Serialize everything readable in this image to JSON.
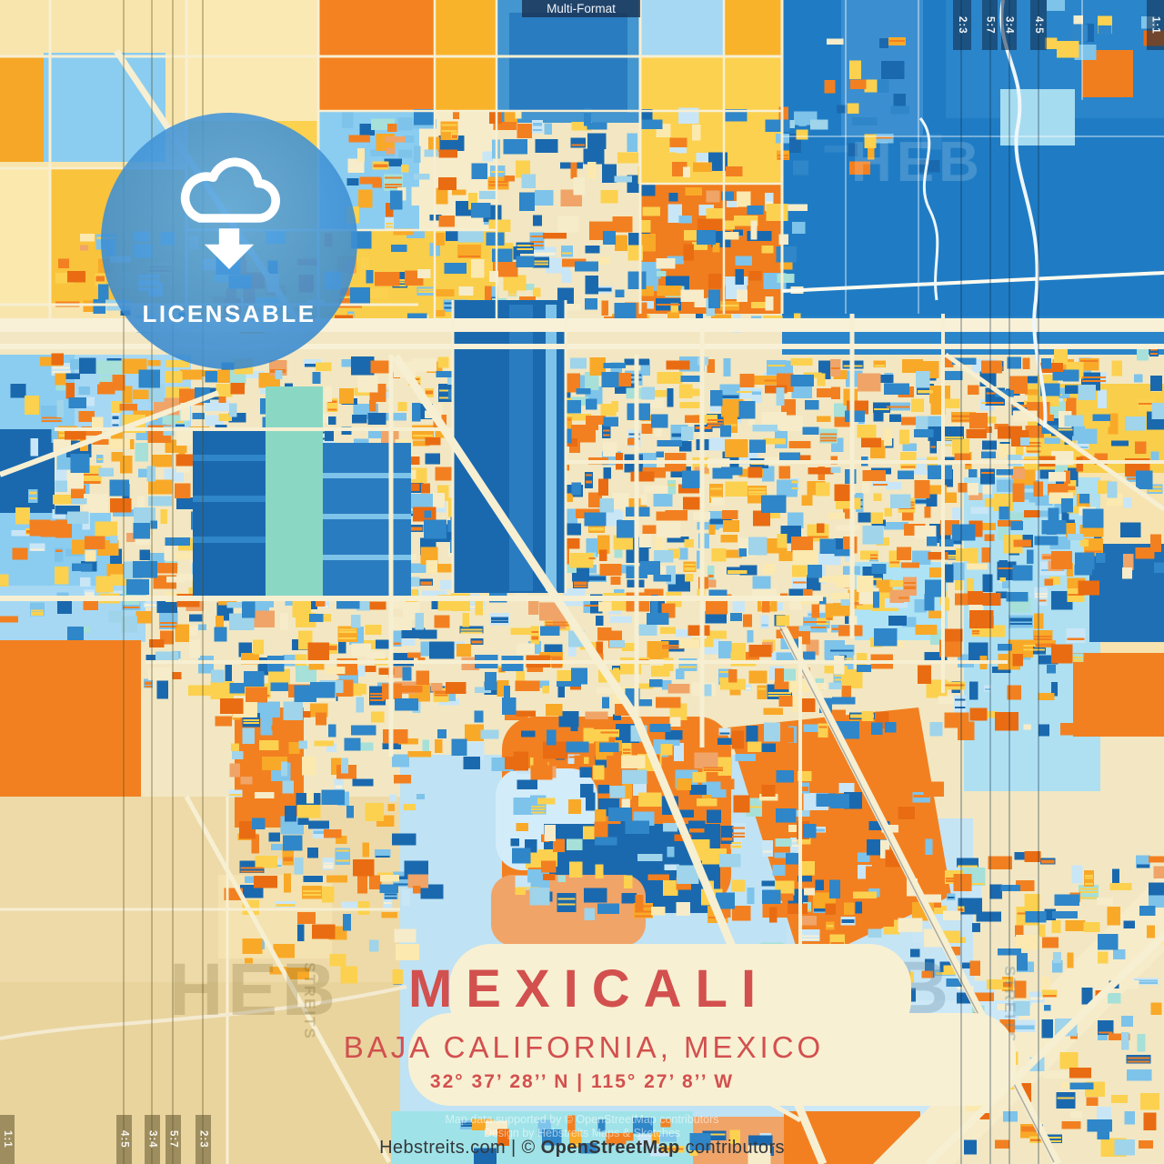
{
  "header": {
    "format_label": "Multi-Format"
  },
  "ratio_markers": {
    "top_right": [
      "2:3",
      "5:7",
      "3:4",
      "4:5"
    ],
    "top_right_edge": "1:1",
    "bottom_left": [
      "4:5",
      "3:4",
      "5:7",
      "2:3"
    ],
    "bottom_left_edge": "1:1"
  },
  "badge": {
    "label": "LICENSABLE",
    "icon": "cloud-download-icon"
  },
  "title_card": {
    "city": "MEXICALI",
    "region": "BAJA CALIFORNIA, MEXICO",
    "coordinates": "32°  37’  28’’ N  |  115°  27’  8’’ W"
  },
  "watermark": {
    "text_large": "HEB",
    "text_vertical": "STREITS"
  },
  "credits": {
    "support_line": "Map data supported by © OpenStreetMap contributors",
    "design_line": "Design by Hebstreits Maps & Sketches",
    "footer_prefix": "Hebstreits.com | © ",
    "footer_brand": "OpenStreetMap",
    "footer_suffix": " contributors"
  },
  "colors": {
    "accent_red": "#d2504e",
    "badge_blue": "#3f9ce2",
    "top_marker_bar": "rgba(14,40,70,0.55)",
    "bottom_marker_bar": "rgba(96,84,44,0.55)",
    "card_cream": "#f8f0d3",
    "road_cream": "#f7efd2",
    "map_palette": [
      "#1a69ae",
      "#2f86c8",
      "#7ec3ea",
      "#c9e6f6",
      "#9fd4ea",
      "#a6e0d8",
      "#8ad8c4",
      "#f6ecca",
      "#fbe9b0",
      "#fcd14f",
      "#f9a928",
      "#f28021",
      "#e96c12",
      "#f0a468"
    ]
  }
}
